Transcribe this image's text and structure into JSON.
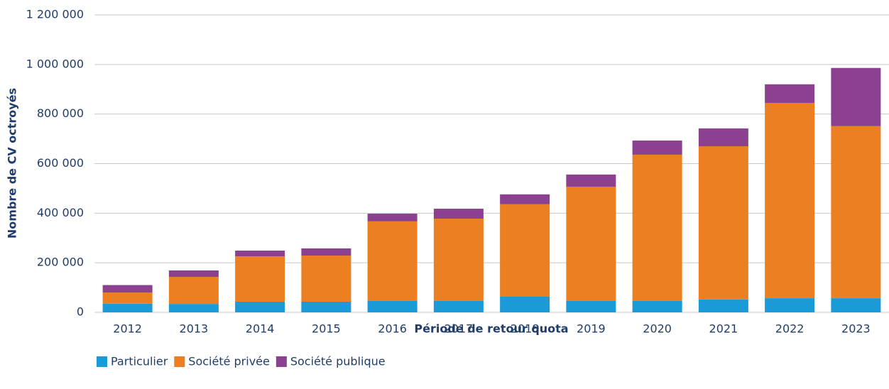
{
  "chart_data": {
    "type": "bar",
    "stacked": true,
    "y_label": "Nombre de CV octroyés",
    "x_label": "Période de retour quota",
    "categories": [
      "2012",
      "2013",
      "2014",
      "2015",
      "2016",
      "2017",
      "2018",
      "2019",
      "2020",
      "2021",
      "2022",
      "2023"
    ],
    "series": [
      {
        "name": "Particulier",
        "color": "#1a9bd7",
        "values": [
          35000,
          34000,
          43000,
          43000,
          46000,
          46000,
          63000,
          46000,
          46000,
          52000,
          57000,
          57000
        ]
      },
      {
        "name": "Société privée",
        "color": "#ec7f22",
        "values": [
          45000,
          109000,
          183000,
          186000,
          321000,
          332000,
          373000,
          461000,
          590000,
          618000,
          788000,
          694000
        ]
      },
      {
        "name": "Société publique",
        "color": "#8b4190",
        "values": [
          30000,
          26000,
          23000,
          29000,
          31000,
          40000,
          40000,
          49000,
          57000,
          72000,
          75000,
          235000
        ]
      }
    ],
    "ylim": [
      0,
      1200000
    ],
    "yticks": [
      0,
      {
        "value": 200000,
        "label": "200 000"
      },
      {
        "value": 400000,
        "label": "400 000"
      },
      {
        "value": 600000,
        "label": "600 000"
      },
      {
        "value": 800000,
        "label": "800 000"
      },
      {
        "value": 1000000,
        "label": "1 000 000"
      },
      {
        "value": 1200000,
        "label": "1 200 000"
      }
    ],
    "grid": true,
    "legend": "bottom"
  }
}
